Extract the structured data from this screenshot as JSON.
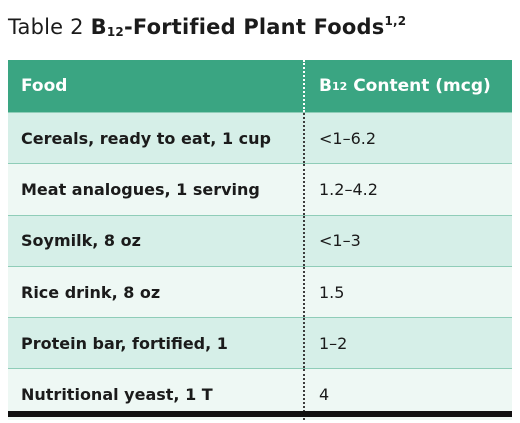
{
  "caption": {
    "number": "Table 2",
    "title_prefix": "B",
    "title_sub": "12",
    "title_rest": "-Fortified Plant Foods",
    "refs": "1,2"
  },
  "table": {
    "headers": {
      "food": "Food",
      "content_prefix": "B",
      "content_sub": "12",
      "content_rest": " Content (mcg)"
    },
    "rows": [
      {
        "food": "Cereals, ready to eat, 1 cup",
        "content": "<1–6.2"
      },
      {
        "food": "Meat analogues, 1 serving",
        "content": "1.2–4.2"
      },
      {
        "food": "Soymilk, 8 oz",
        "content": "<1–3"
      },
      {
        "food": "Rice drink, 8 oz",
        "content": "1.5"
      },
      {
        "food": "Protein bar, fortified, 1",
        "content": "1–2"
      },
      {
        "food": "Nutritional yeast, 1 T",
        "content": "4"
      }
    ]
  },
  "colors": {
    "header_bg": "#3aa582",
    "row_odd": "#d6efe8",
    "row_even": "#eef8f4"
  }
}
